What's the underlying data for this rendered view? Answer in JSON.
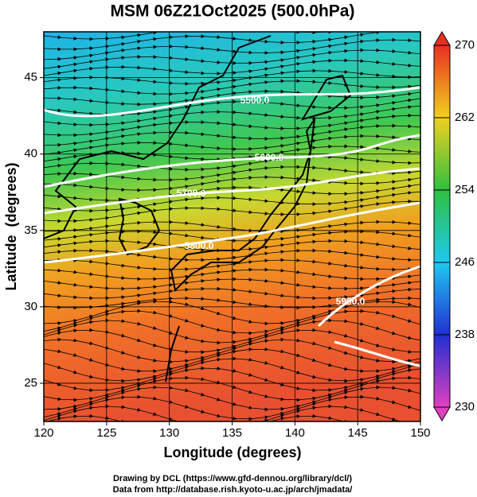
{
  "chart_data": {
    "type": "contour-map",
    "title": "MSM 06Z21Oct2025 (500.0hPa)",
    "x_label": "Longitude (degrees)",
    "y_label": "Latitude  (degrees)",
    "xlim": [
      120,
      150
    ],
    "ylim": [
      22.5,
      48
    ],
    "xticks": [
      120,
      125,
      130,
      135,
      140,
      145,
      150
    ],
    "yticks": [
      25,
      30,
      35,
      40,
      45
    ],
    "grid": true,
    "colorbar": {
      "lim": [
        230,
        270
      ],
      "ticks": [
        230,
        238,
        246,
        254,
        262,
        270
      ],
      "colors": [
        "#e040c0",
        "#2030d0",
        "#20c8f0",
        "#30c040",
        "#f0d020",
        "#e83020"
      ]
    },
    "contours": {
      "values": [
        5500,
        5600,
        5700,
        5800,
        5900
      ],
      "value_labels": [
        "5500.0",
        "5600.0",
        "5700.0",
        "5800.0",
        "5900.0"
      ]
    }
  },
  "credits": [
    "Drawing by DCL (https://www.gfd-dennou.org/library/dcl/)",
    "Data from http://database.rish.kyoto-u.ac.jp/arch/jmadata/"
  ]
}
